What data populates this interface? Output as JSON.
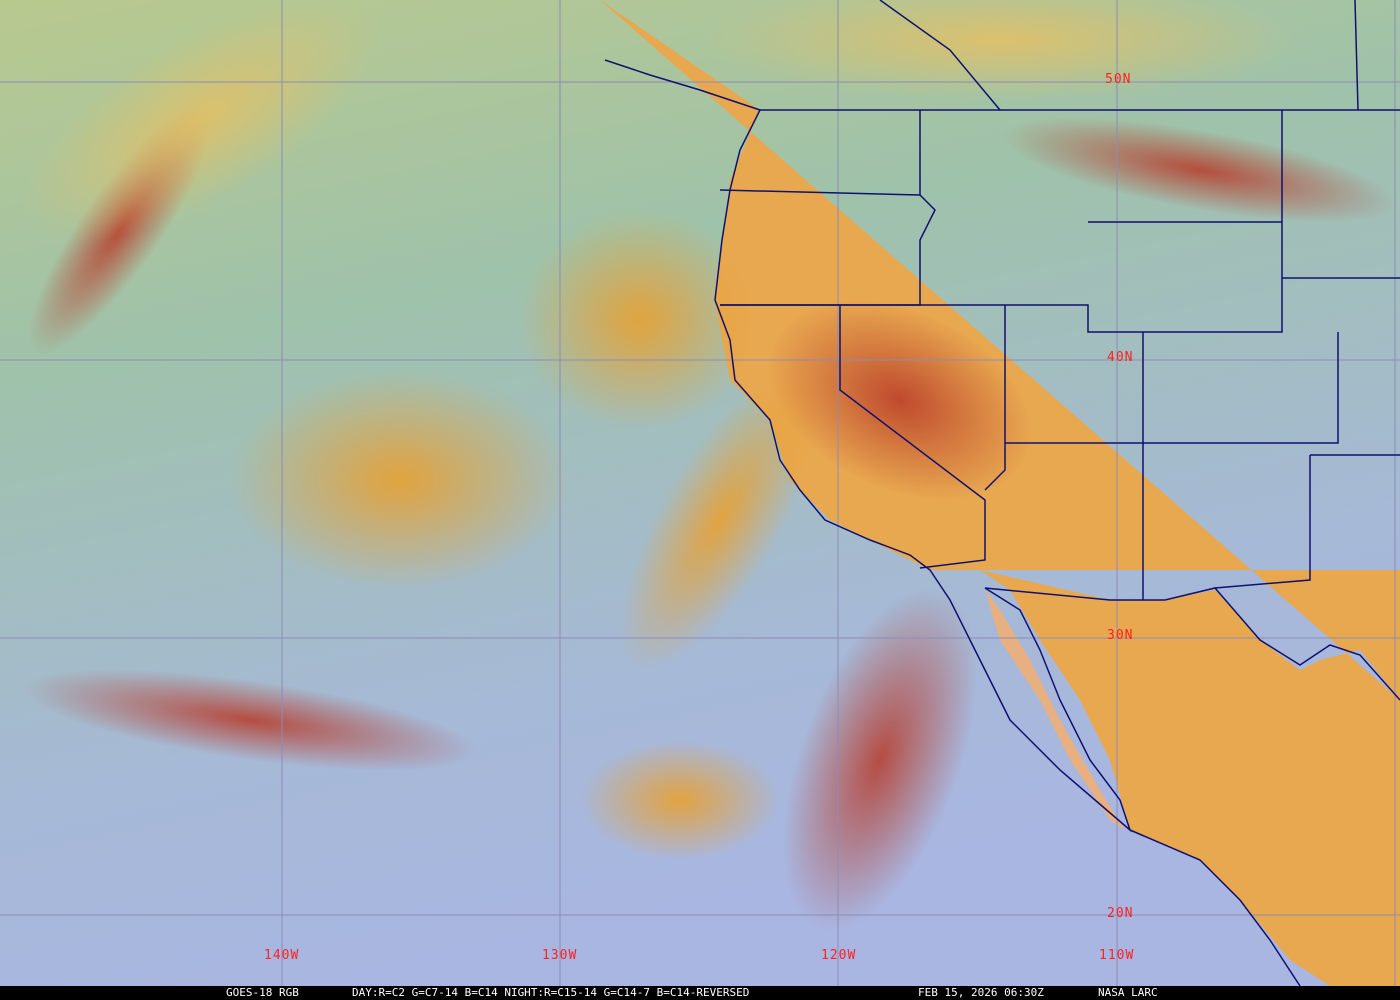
{
  "map": {
    "latitude_labels": [
      "50N",
      "40N",
      "30N",
      "20N"
    ],
    "longitude_labels": [
      "140W",
      "130W",
      "120W",
      "110W"
    ],
    "colors": {
      "grid": "#8c8cb4",
      "borders": "#10106e",
      "labels": "#ff2020",
      "land": "#e8a850",
      "ocean_north": "#9fc2aa",
      "ocean_south": "#a9b6e2",
      "cloud_red": "#b8402a"
    }
  },
  "caption": {
    "product": "GOES-18 RGB",
    "recipe": "DAY:R=C2 G=C7-14 B=C14 NIGHT:R=C15-14 G=C14-7 B=C14-REVERSED",
    "timestamp": "FEB 15, 2026 06:30Z",
    "credit": "NASA LARC"
  }
}
